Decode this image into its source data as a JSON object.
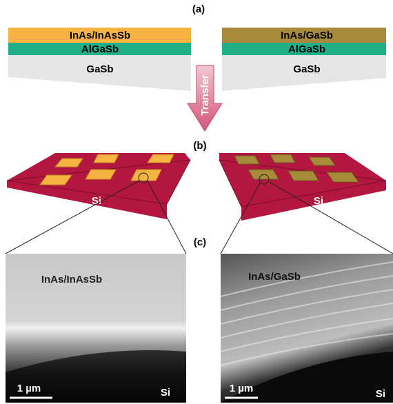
{
  "panel_labels": [
    "(a)",
    "(b)",
    "(c)"
  ],
  "arrow_label": "Transfer",
  "left": {
    "layers": [
      "InAs/InAsSb",
      "AlGaSb",
      "GaSb"
    ],
    "substrate": "Si",
    "sem": {
      "label": "InAs/InAsSb",
      "scale_bar": "1 µm",
      "substrate": "Si"
    }
  },
  "right": {
    "layers": [
      "InAs/GaSb",
      "AlGaSb",
      "GaSb"
    ],
    "substrate": "Si",
    "sem": {
      "label": "InAs/GaSb",
      "scale_bar": "1 µm",
      "substrate": "Si"
    }
  }
}
